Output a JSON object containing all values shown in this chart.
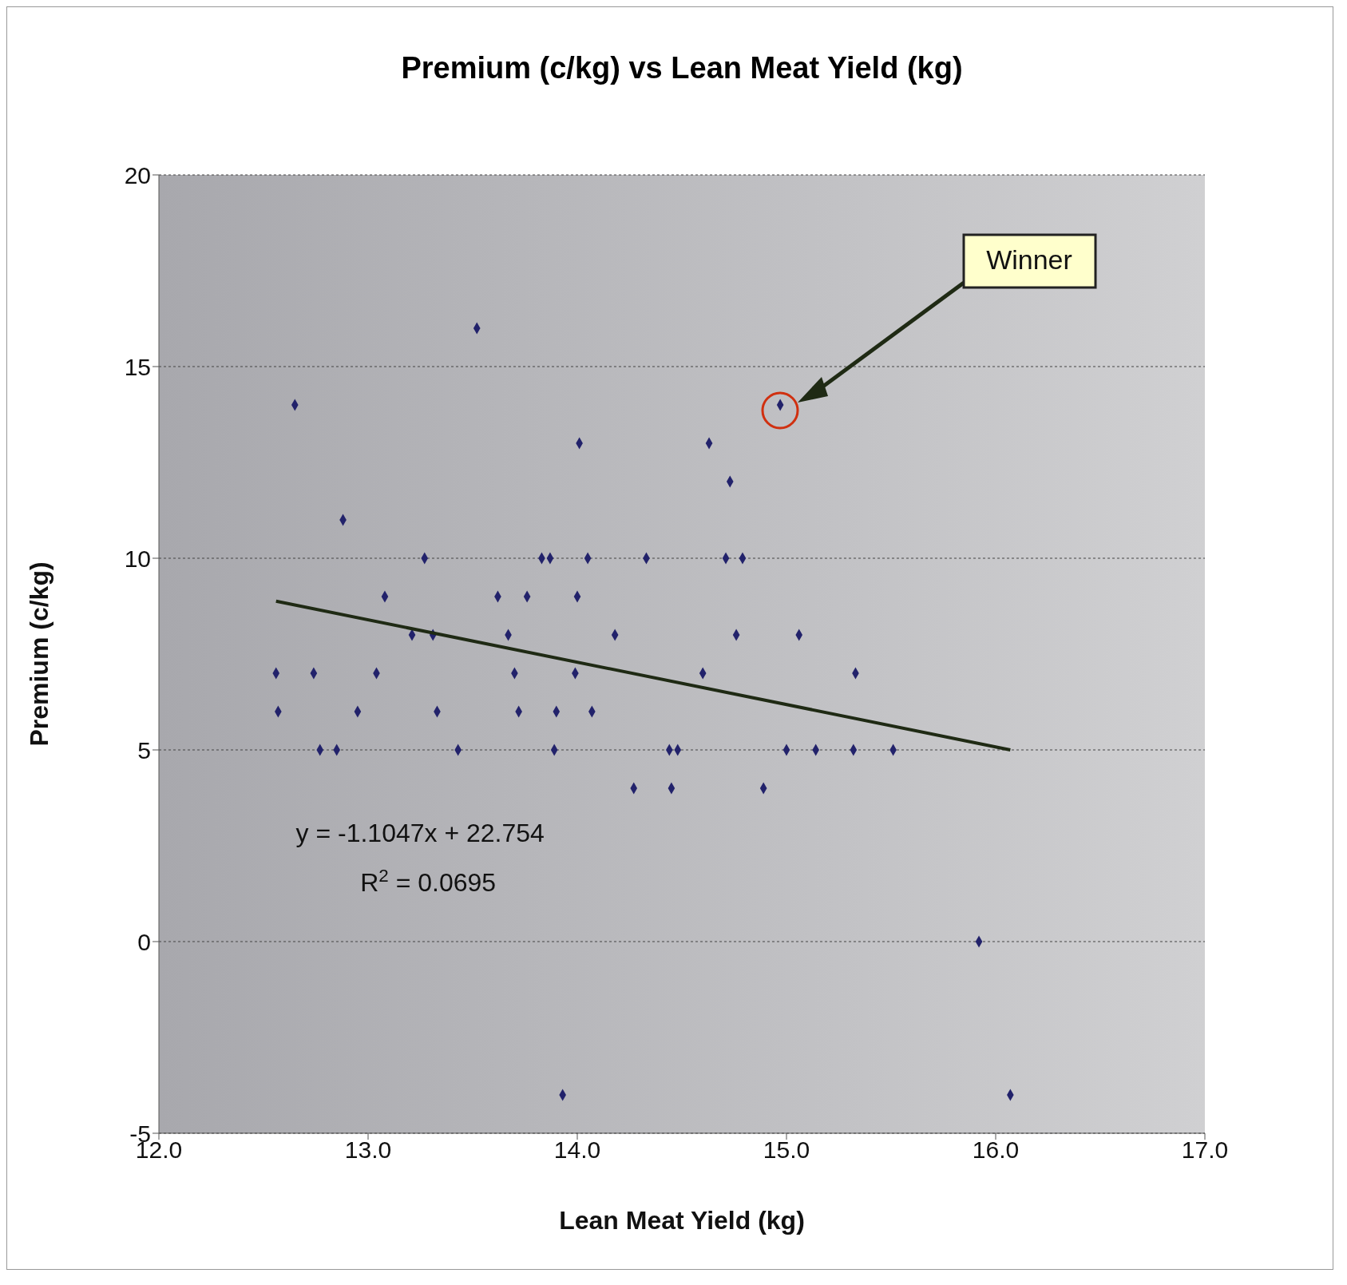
{
  "chart_data": {
    "type": "scatter",
    "title": "Premium (c/kg) vs Lean Meat Yield (kg)",
    "xlabel": "Lean Meat Yield (kg)",
    "ylabel": "Premium (c/kg)",
    "xlim": [
      12,
      17
    ],
    "xticks": [
      {
        "value": 12,
        "label": "12.0"
      },
      {
        "value": 13,
        "label": "13.0"
      },
      {
        "value": 14,
        "label": "14.0"
      },
      {
        "value": 15,
        "label": "15.0"
      },
      {
        "value": 16,
        "label": "16.0"
      },
      {
        "value": 17,
        "label": "17.0"
      }
    ],
    "ylim": [
      -5,
      20
    ],
    "yticks": [
      -5,
      0,
      5,
      10,
      15,
      20
    ],
    "grid": "y",
    "marker": "diamond",
    "legend": false,
    "series": [
      {
        "color": "#22226b",
        "x": [
          13.52,
          12.65,
          14.97,
          14.01,
          14.63,
          14.73,
          12.88,
          13.27,
          13.83,
          13.87,
          14.05,
          14.33,
          14.71,
          14.79,
          13.08,
          13.62,
          13.76,
          14.0,
          13.21,
          13.31,
          13.67,
          14.18,
          14.76,
          15.06,
          12.56,
          12.74,
          13.04,
          13.7,
          13.99,
          14.6,
          15.33,
          12.57,
          12.95,
          13.33,
          13.72,
          13.9,
          14.07,
          12.77,
          12.85,
          13.43,
          13.89,
          14.44,
          14.48,
          15.0,
          15.14,
          15.32,
          15.51,
          14.27,
          14.45,
          14.89,
          15.92,
          13.93,
          16.07
        ],
        "values": [
          16,
          14,
          14,
          13,
          13,
          12,
          11,
          10,
          10,
          10,
          10,
          10,
          10,
          10,
          9,
          9,
          9,
          9,
          8,
          8,
          8,
          8,
          8,
          8,
          7,
          7,
          7,
          7,
          7,
          7,
          7,
          6,
          6,
          6,
          6,
          6,
          6,
          5,
          5,
          5,
          5,
          5,
          5,
          5,
          5,
          5,
          5,
          4,
          4,
          4,
          0,
          -4,
          -4
        ]
      },
      {
        "type": "line",
        "color": "#1f2a14",
        "x": [
          12.56,
          16.07
        ],
        "values": [
          8.88,
          5.0
        ],
        "marker": "none"
      }
    ],
    "annotations": [
      "y = -1.1047x + 22.754",
      "R$^{2}$ = 0.0695",
      "Winner"
    ]
  }
}
